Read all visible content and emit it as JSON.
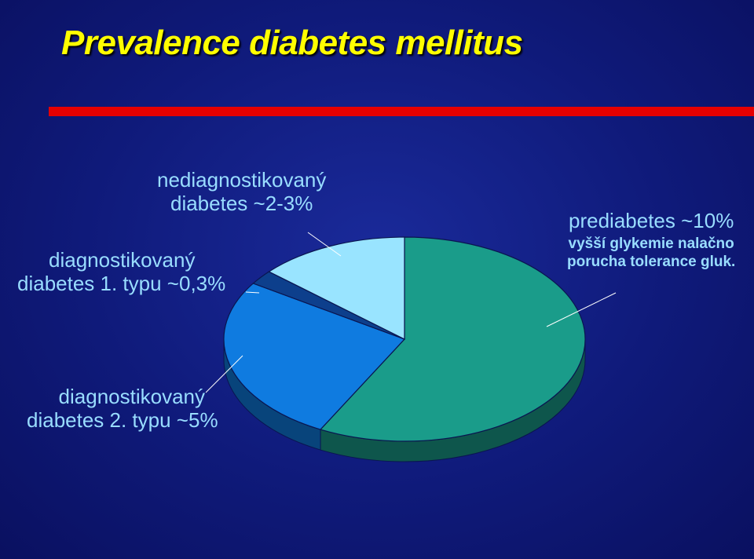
{
  "title": "Prevalence diabetes mellitus",
  "colors": {
    "title": "#ffff00",
    "rule": "#e60000",
    "label": "#99ddff",
    "background": "#0f1a7a"
  },
  "labels": {
    "undiagnosed": [
      "nediagnostikovaný",
      "diabetes ~2-3%"
    ],
    "type1": [
      "diagnostikovaný",
      "diabetes 1. typu  ~0,3%"
    ],
    "prediabetes_title": "prediabetes ~10%",
    "prediabetes_sub": [
      "vyšší glykemie nalačno",
      "porucha tolerance gluk."
    ],
    "type2": [
      "diagnostikovaný",
      "diabetes 2. typu  ~5%"
    ]
  },
  "chart_data": {
    "type": "pie",
    "title": "Prevalence diabetes mellitus",
    "slices": [
      {
        "label": "prediabetes ~10%",
        "value": 57.7,
        "color": "#1a9c8a"
      },
      {
        "label": "diagnostikovaný diabetes 2. typu ~5%",
        "value": 26.5,
        "color": "#0f7be0"
      },
      {
        "label": "diagnostikovaný diabetes 1. typu ~0,3%",
        "value": 2.3,
        "color": "#0d3f8c"
      },
      {
        "label": "nediagnostikovaný diabetes ~2-3%",
        "value": 13.5,
        "color": "#99e4ff"
      }
    ]
  }
}
